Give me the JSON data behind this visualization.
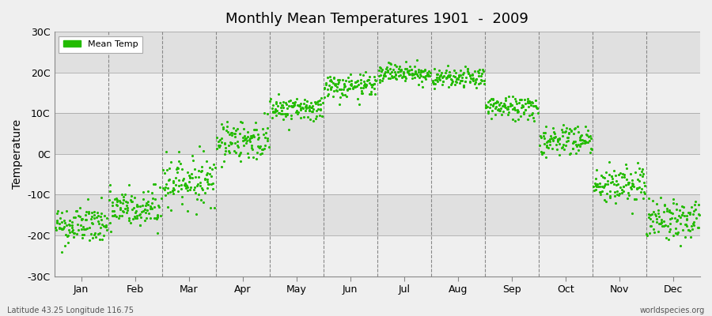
{
  "title": "Monthly Mean Temperatures 1901  -  2009",
  "ylabel": "Temperature",
  "xlabel_bottom_left": "Latitude 43.25 Longitude 116.75",
  "xlabel_bottom_right": "worldspecies.org",
  "legend_label": "Mean Temp",
  "dot_color": "#22BB00",
  "background_color": "#EFEFEF",
  "plot_bg_light": "#EFEFEF",
  "plot_bg_dark": "#E0E0E0",
  "grid_color": "#888888",
  "ylim": [
    -30,
    30
  ],
  "yticks": [
    -30,
    -20,
    -10,
    0,
    10,
    20,
    30
  ],
  "ytick_labels": [
    "-30C",
    "-20C",
    "-10C",
    "0C",
    "10C",
    "20C",
    "30C"
  ],
  "months": [
    "Jan",
    "Feb",
    "Mar",
    "Apr",
    "May",
    "Jun",
    "Jul",
    "Aug",
    "Sep",
    "Oct",
    "Nov",
    "Dec"
  ],
  "monthly_means": [
    -17.5,
    -13.5,
    -6.5,
    3.5,
    11.2,
    16.5,
    20.0,
    18.5,
    11.5,
    3.5,
    -7.5,
    -16.0
  ],
  "monthly_stds": [
    2.5,
    2.8,
    3.0,
    2.5,
    1.5,
    1.5,
    1.2,
    1.2,
    1.5,
    2.0,
    2.5,
    2.5
  ],
  "n_years": 109,
  "scatter_size": 5,
  "font_size_title": 13,
  "font_size_ticks": 9,
  "font_size_legend": 8,
  "font_size_annotation": 7
}
